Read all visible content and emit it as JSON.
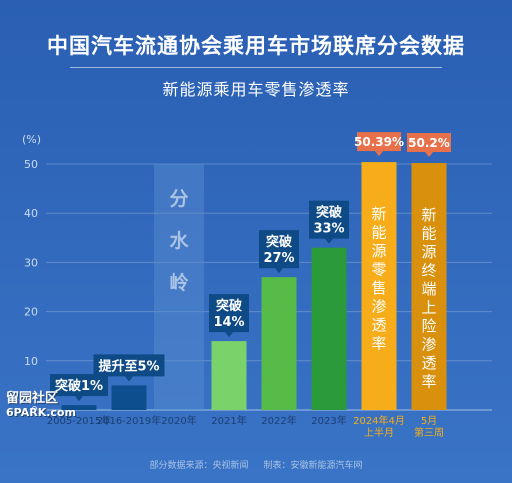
{
  "header": {
    "title": "中国汽车流通协会乘用车市场联席分会数据",
    "subtitle": "新能源乘用车零售渗透率"
  },
  "chart_data": {
    "type": "bar",
    "y_unit_label": "(%)",
    "ylim": [
      0,
      50
    ],
    "yticks": [
      0,
      10,
      20,
      30,
      40,
      50
    ],
    "categories": [
      "2005-2015年",
      "2016-2019年",
      "2020年",
      "2021年",
      "2022年",
      "2023年",
      "2024年4月上半月",
      "5月第三周"
    ],
    "category_lines": [
      [
        "2005-2015年"
      ],
      [
        "2016-2019年"
      ],
      [
        "2020年"
      ],
      [
        "2021年"
      ],
      [
        "2022年"
      ],
      [
        "2023年"
      ],
      [
        "2024年4月",
        "上半月"
      ],
      [
        "5月",
        "第三周"
      ]
    ],
    "values": [
      1,
      5,
      null,
      14,
      27,
      33,
      50.39,
      50.2
    ],
    "bar_colors": [
      "#0d4f8e",
      "#0d4f8e",
      null,
      "#7ad36a",
      "#56bb47",
      "#2a9a3a",
      "#f6ad19",
      "#d9900d"
    ],
    "category_label_colors": [
      "#1a3f73",
      "#1a3f73",
      "#1a3f73",
      "#1a3f73",
      "#1a3f73",
      "#1a3f73",
      "#f6ad19",
      "#f6ad19"
    ],
    "annotations": [
      {
        "index": 0,
        "lines": [
          "突破1%"
        ]
      },
      {
        "index": 1,
        "lines": [
          "提升至5%"
        ]
      },
      {
        "index": 3,
        "lines": [
          "突破",
          "14%"
        ]
      },
      {
        "index": 4,
        "lines": [
          "突破",
          "27%"
        ]
      },
      {
        "index": 5,
        "lines": [
          "突破",
          "33%"
        ]
      }
    ],
    "top_value_labels": [
      {
        "index": 6,
        "text": "50.39%"
      },
      {
        "index": 7,
        "text": "50.2%"
      }
    ],
    "bar_inner_text": [
      {
        "index": 6,
        "text": "新能源零售渗透率"
      },
      {
        "index": 7,
        "text": "新能源终端上险渗透率"
      }
    ],
    "divider": {
      "index": 2,
      "text": "分水岭"
    },
    "grid": true
  },
  "footer": {
    "source": "部分数据来源：央视新闻",
    "producer": "制表：安徽新能源汽车网"
  },
  "watermark": {
    "line1": "留园社区",
    "line2": "6PARK.com"
  },
  "colors": {
    "annotation_bg": "#0e4a86",
    "top_label_bg": "#e8704a",
    "divider_bg": "#5b8dd1",
    "axis_text": "#c9daf0"
  }
}
